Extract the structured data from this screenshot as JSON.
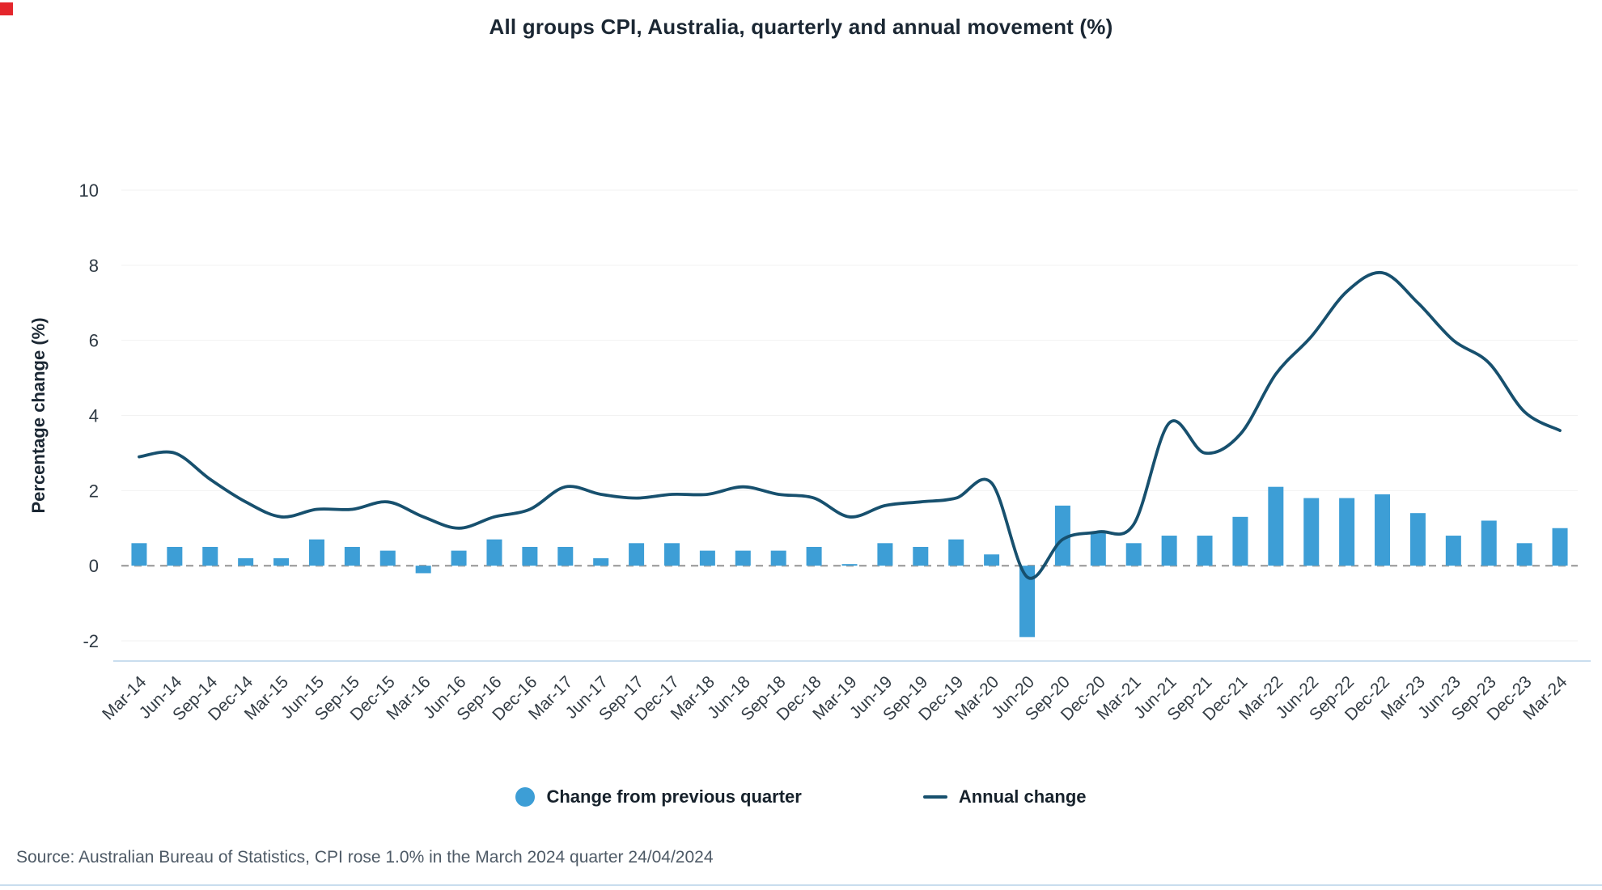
{
  "page": {
    "title": "All groups CPI, Australia, quarterly and annual movement (%)",
    "source": "Source: Australian Bureau of Statistics, CPI rose 1.0% in the March 2024 quarter 24/04/2024"
  },
  "legend": {
    "bar_label": "Change from previous quarter",
    "line_label": "Annual change"
  },
  "colors": {
    "bar": "#3d9ed6",
    "line": "#17506e",
    "zero_line": "#a3a3a3",
    "grid": "#f2f2f2",
    "rule": "#c9ddee",
    "marker": "#e4262c",
    "tick_text": "#333c44"
  },
  "chart_data": {
    "type": "bar",
    "title": "All groups CPI, Australia, quarterly and annual movement (%)",
    "xlabel": "",
    "ylabel": "Percentage change (%)",
    "ylim": [
      -2,
      10
    ],
    "yticks": [
      -2,
      0,
      2,
      4,
      6,
      8,
      10
    ],
    "grid": "off",
    "legend_position": "bottom",
    "categories": [
      "Mar-14",
      "Jun-14",
      "Sep-14",
      "Dec-14",
      "Mar-15",
      "Jun-15",
      "Sep-15",
      "Dec-15",
      "Mar-16",
      "Jun-16",
      "Sep-16",
      "Dec-16",
      "Mar-17",
      "Jun-17",
      "Sep-17",
      "Dec-17",
      "Mar-18",
      "Jun-18",
      "Sep-18",
      "Dec-18",
      "Mar-19",
      "Jun-19",
      "Sep-19",
      "Dec-19",
      "Mar-20",
      "Jun-20",
      "Sep-20",
      "Dec-20",
      "Mar-21",
      "Jun-21",
      "Sep-21",
      "Dec-21",
      "Mar-22",
      "Jun-22",
      "Sep-22",
      "Dec-22",
      "Mar-23",
      "Jun-23",
      "Sep-23",
      "Dec-23",
      "Mar-24"
    ],
    "series": [
      {
        "name": "Change from previous quarter",
        "type": "bar",
        "values": [
          0.6,
          0.5,
          0.5,
          0.2,
          0.2,
          0.7,
          0.5,
          0.4,
          -0.2,
          0.4,
          0.7,
          0.5,
          0.5,
          0.2,
          0.6,
          0.6,
          0.4,
          0.4,
          0.4,
          0.5,
          0.0,
          0.6,
          0.5,
          0.7,
          0.3,
          -1.9,
          1.6,
          0.9,
          0.6,
          0.8,
          0.8,
          1.3,
          2.1,
          1.8,
          1.8,
          1.9,
          1.4,
          0.8,
          1.2,
          0.6,
          1.0
        ]
      },
      {
        "name": "Annual change",
        "type": "line",
        "values": [
          2.9,
          3.0,
          2.3,
          1.7,
          1.3,
          1.5,
          1.5,
          1.7,
          1.3,
          1.0,
          1.3,
          1.5,
          2.1,
          1.9,
          1.8,
          1.9,
          1.9,
          2.1,
          1.9,
          1.8,
          1.3,
          1.6,
          1.7,
          1.8,
          2.2,
          -0.3,
          0.7,
          0.9,
          1.1,
          3.8,
          3.0,
          3.5,
          5.1,
          6.1,
          7.3,
          7.8,
          7.0,
          6.0,
          5.4,
          4.1,
          3.6
        ]
      }
    ]
  }
}
